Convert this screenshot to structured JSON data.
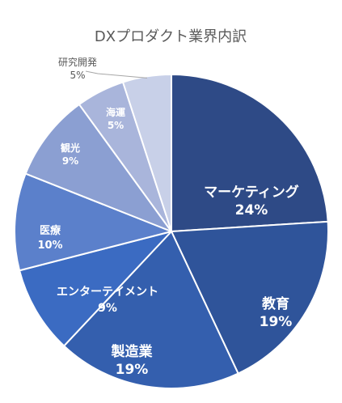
{
  "chart_data": {
    "type": "pie",
    "title": "DXプロダクト業界内訳",
    "categories": [
      "マーケティング",
      "教育",
      "製造業",
      "エンターテイメント",
      "医療",
      "観光",
      "海運",
      "研究開発"
    ],
    "values": [
      24,
      19,
      19,
      9,
      10,
      9,
      5,
      5
    ],
    "value_labels": [
      "24%",
      "19%",
      "19%",
      "9%",
      "10%",
      "9%",
      "5%",
      "5%"
    ],
    "unit": "%",
    "colors": [
      "#2e4a86",
      "#2f549a",
      "#345fae",
      "#3b6bc2",
      "#5b80cb",
      "#8b9fd2",
      "#a9b5db",
      "#c8d0e8"
    ],
    "start": "12 o'clock",
    "direction": "clockwise",
    "legend": "none",
    "data_labels": "category and percent on slices"
  }
}
